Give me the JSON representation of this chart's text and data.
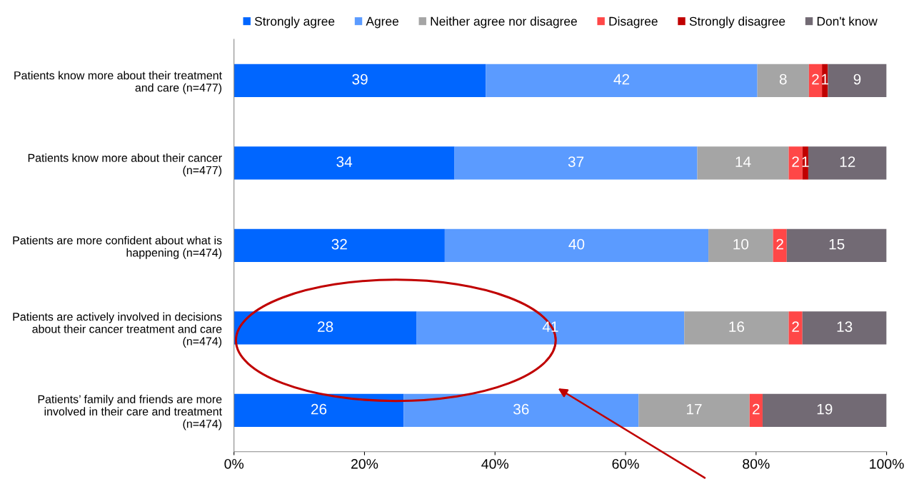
{
  "chart_data": {
    "type": "bar",
    "orientation": "horizontal",
    "stacked": true,
    "categories": [
      "Patients know more about their treatment\nand care (n=477)",
      "Patients know more about their cancer\n(n=477)",
      "Patients are more confident about what is\nhappening (n=474)",
      "Patients are actively involved in decisions\nabout their cancer treatment and care\n(n=474)",
      "Patients’ family and friends are more\ninvolved in their care and treatment\n(n=474)"
    ],
    "series": [
      {
        "name": "Strongly agree",
        "color": "#0066ff",
        "values": [
          38.6,
          33.8,
          32.3,
          28.0,
          26.0
        ],
        "value_labels": [
          "39",
          "34",
          "32",
          "28",
          "26"
        ]
      },
      {
        "name": "Agree",
        "color": "#5b9bff",
        "values": [
          41.6,
          37.2,
          40.4,
          41.0,
          36.0
        ],
        "value_labels": [
          "42",
          "37",
          "40",
          "41",
          "36"
        ]
      },
      {
        "name": "Neither agree nor disagree",
        "color": "#a5a5a5",
        "values": [
          7.9,
          14.0,
          9.9,
          16.0,
          17.0
        ],
        "value_labels": [
          "8",
          "14",
          "10",
          "16",
          "17"
        ]
      },
      {
        "name": "Disagree",
        "color": "#ff4747",
        "values": [
          2.0,
          2.1,
          2.1,
          2.1,
          2.0
        ],
        "value_labels": [
          "2",
          "2",
          "2",
          "2",
          "2"
        ]
      },
      {
        "name": "Strongly disagree",
        "color": "#c00000",
        "values": [
          0.9,
          0.9,
          null,
          null,
          null
        ],
        "value_labels": [
          "1",
          "1",
          null,
          null,
          null
        ]
      },
      {
        "name": "Don't know",
        "color": "#726a74",
        "values": [
          9.0,
          12.0,
          15.3,
          12.9,
          19.0
        ],
        "value_labels": [
          "9",
          "12",
          "15",
          "13",
          "19"
        ]
      }
    ],
    "xlim": [
      0,
      100
    ],
    "xticks": [
      {
        "value": 0,
        "label": "0%"
      },
      {
        "value": 20,
        "label": "20%"
      },
      {
        "value": 40,
        "label": "40%"
      },
      {
        "value": 60,
        "label": "60%"
      },
      {
        "value": 80,
        "label": "80%"
      },
      {
        "value": 100,
        "label": "100%"
      }
    ],
    "grid": false,
    "legend": "top"
  }
}
